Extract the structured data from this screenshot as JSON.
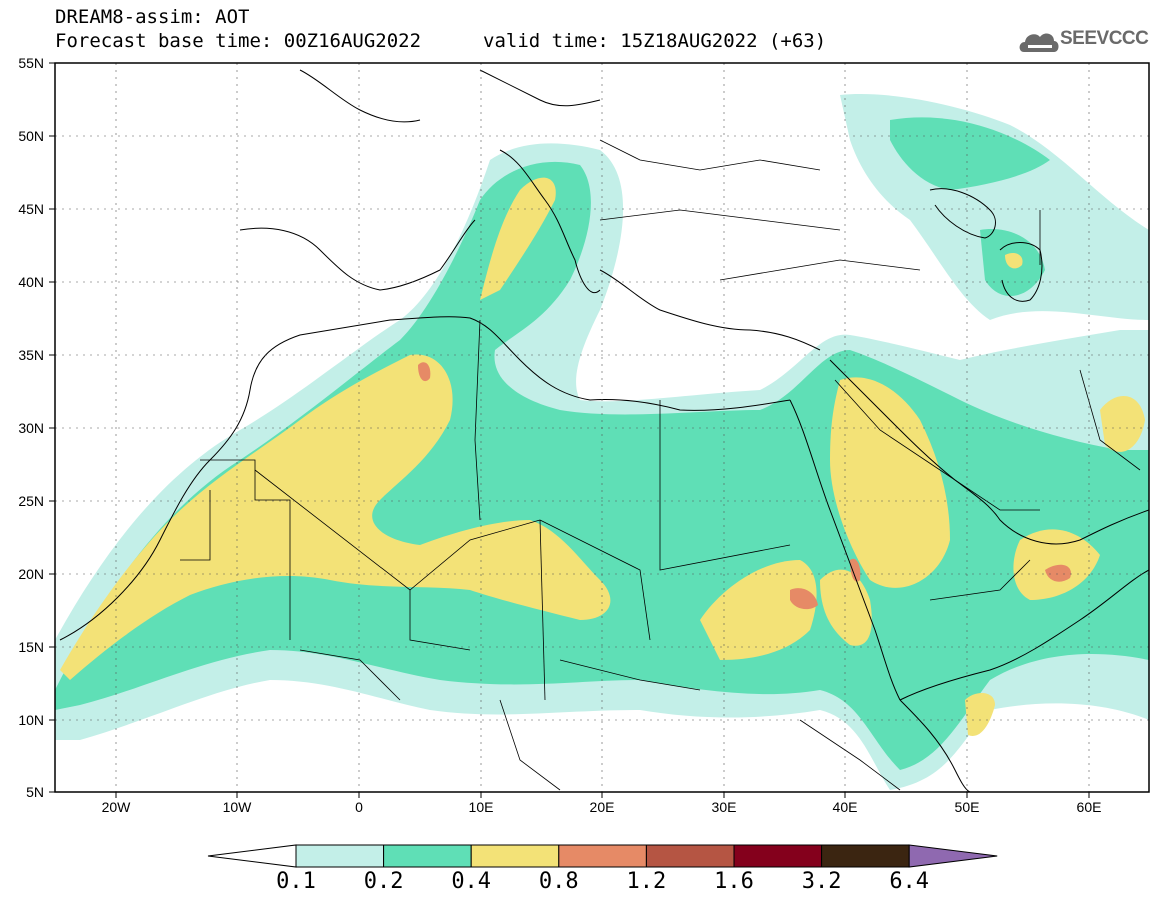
{
  "header": {
    "title": "DREAM8-assim: AOT",
    "base_time": "Forecast base time: 00Z16AUG2022",
    "valid_time": "valid time: 15Z18AUG2022 (+63)",
    "logo_text": "SEEVCCC"
  },
  "map": {
    "lat_range": [
      5,
      55
    ],
    "lon_range": [
      -25,
      65
    ],
    "lat_labels": [
      "55N",
      "50N",
      "45N",
      "40N",
      "35N",
      "30N",
      "25N",
      "20N",
      "15N",
      "10N",
      "5N"
    ],
    "lon_labels": [
      "20W",
      "10W",
      "0",
      "10E",
      "20E",
      "30E",
      "40E",
      "50E",
      "60E"
    ]
  },
  "legend": {
    "colors": [
      "#c3efe8",
      "#5fdfb6",
      "#f3e277",
      "#e68a66",
      "#b55543",
      "#84001c",
      "#3b2511",
      "#8f69b0"
    ],
    "labels": [
      "0.1",
      "0.2",
      "0.4",
      "0.8",
      "1.2",
      "1.6",
      "3.2",
      "6.4"
    ],
    "under_color": "#ffffff"
  }
}
